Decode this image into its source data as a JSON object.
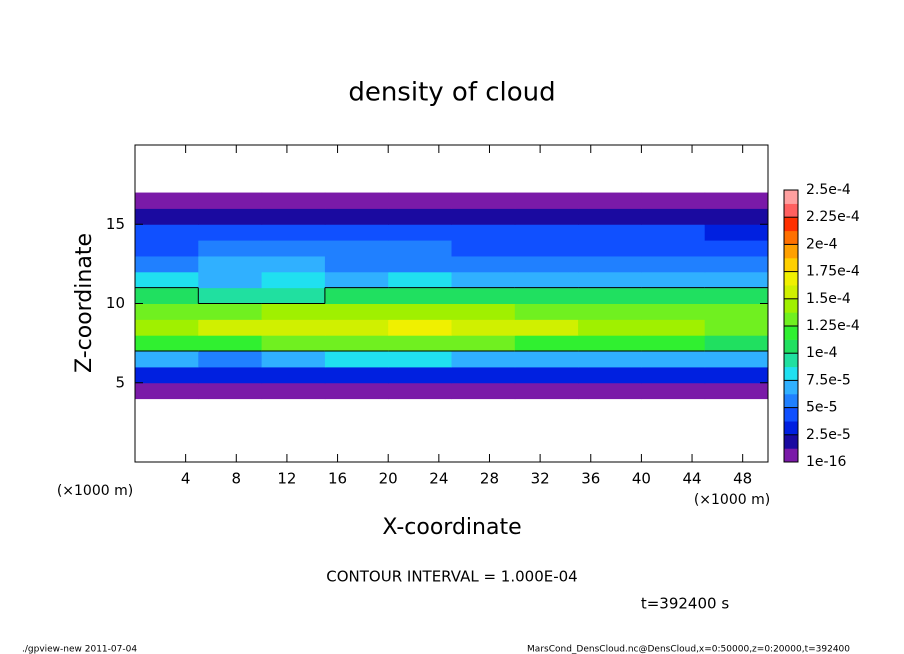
{
  "chart_data": {
    "type": "heatmap",
    "title": "density of cloud",
    "x_label": "X-coordinate",
    "y_label": "Z-coordinate",
    "x_unit_left": "(×1000 m)",
    "x_unit_right": "(×1000 m)",
    "xlim": [
      0,
      50
    ],
    "xticks": [
      4,
      8,
      12,
      16,
      20,
      24,
      28,
      32,
      36,
      40,
      44,
      48
    ],
    "ylim": [
      0,
      20
    ],
    "yticks": [
      5,
      10,
      15
    ],
    "x": [
      2.5,
      7.5,
      12.5,
      17.5,
      22.5,
      27.5,
      32.5,
      37.5,
      42.5,
      47.5
    ],
    "y": [
      4.5,
      5.5,
      6.5,
      7.5,
      8.5,
      9.5,
      10.5,
      11.5,
      12.5,
      13.5,
      14.5,
      15.5,
      16.5
    ],
    "z": [
      [
        2e-06,
        2e-06,
        2e-06,
        2e-06,
        2e-06,
        2e-06,
        2e-06,
        2e-06,
        2e-06,
        2e-06
      ],
      [
        3e-05,
        2.5e-05,
        3e-05,
        3e-05,
        3e-05,
        2.8e-05,
        3e-05,
        3e-05,
        3e-05,
        3e-05
      ],
      [
        7e-05,
        6e-05,
        7e-05,
        7.5e-05,
        8e-05,
        7e-05,
        6.5e-05,
        7e-05,
        7e-05,
        7e-05
      ],
      [
        0.000115,
        0.00012,
        0.000125,
        0.00013,
        0.000135,
        0.00013,
        0.00012,
        0.00012,
        0.000115,
        0.00011
      ],
      [
        0.00014,
        0.00015,
        0.000155,
        0.00016,
        0.00017,
        0.00016,
        0.00015,
        0.000145,
        0.00014,
        0.000135
      ],
      [
        0.00013,
        0.000135,
        0.00014,
        0.00014,
        0.000145,
        0.00014,
        0.000135,
        0.00013,
        0.000125,
        0.000125
      ],
      [
        0.000105,
        9e-05,
        9.5e-05,
        0.000105,
        0.00011,
        0.000105,
        0.000105,
        0.0001,
        0.0001,
        0.000105
      ],
      [
        8e-05,
        7e-05,
        7.5e-05,
        7e-05,
        7.5e-05,
        7e-05,
        7e-05,
        6.5e-05,
        6.5e-05,
        7e-05
      ],
      [
        5.5e-05,
        6.5e-05,
        6.5e-05,
        5.5e-05,
        5.5e-05,
        5e-05,
        5e-05,
        5e-05,
        5e-05,
        5e-05
      ],
      [
        4.5e-05,
        5.5e-05,
        5e-05,
        5e-05,
        5e-05,
        4.5e-05,
        4.5e-05,
        4.5e-05,
        4e-05,
        4e-05
      ],
      [
        4e-05,
        4.5e-05,
        4.5e-05,
        4.5e-05,
        4e-05,
        4e-05,
        4e-05,
        4e-05,
        4e-05,
        3.5e-05
      ],
      [
        2e-05,
        2e-05,
        2e-05,
        2e-05,
        2e-05,
        2e-05,
        2e-05,
        2e-05,
        2e-05,
        2e-05
      ],
      [
        2e-06,
        2e-06,
        2e-06,
        2e-06,
        2e-06,
        2e-06,
        2e-06,
        2e-06,
        2e-06,
        2e-06
      ]
    ],
    "levels": [
      {
        "value": 1e-16,
        "label": "1e-16"
      },
      {
        "value": 2.5e-05,
        "label": "2.5e-5"
      },
      {
        "value": 5e-05,
        "label": "5e-5"
      },
      {
        "value": 7.5e-05,
        "label": "7.5e-5"
      },
      {
        "value": 0.0001,
        "label": "1e-4"
      },
      {
        "value": 0.000125,
        "label": "1.25e-4"
      },
      {
        "value": 0.00015,
        "label": "1.5e-4"
      },
      {
        "value": 0.000175,
        "label": "1.75e-4"
      },
      {
        "value": 0.0002,
        "label": "2e-4"
      },
      {
        "value": 0.000225,
        "label": "2.25e-4"
      },
      {
        "value": 0.00025,
        "label": "2.5e-4"
      }
    ],
    "colors": [
      "#7a1aa8",
      "#1a0aa0",
      "#0020e0",
      "#1050ff",
      "#2080ff",
      "#30b0ff",
      "#20e0f0",
      "#20e0a0",
      "#20e060",
      "#30f030",
      "#70f020",
      "#a0f000",
      "#d0f000",
      "#f0f000",
      "#ffd000",
      "#ffa000",
      "#ff7000",
      "#ff3000",
      "#ff6060",
      "#ffa0a0"
    ],
    "contour_interval": {
      "value": 0.0001,
      "label": "CONTOUR INTERVAL = 1.000E-04"
    },
    "time_label": "t=392400 s",
    "footer_left": "./gpview-new  2011-07-04",
    "footer_right": "MarsCond_DensCloud.nc@DensCloud,x=0:50000,z=0:20000,t=392400"
  }
}
